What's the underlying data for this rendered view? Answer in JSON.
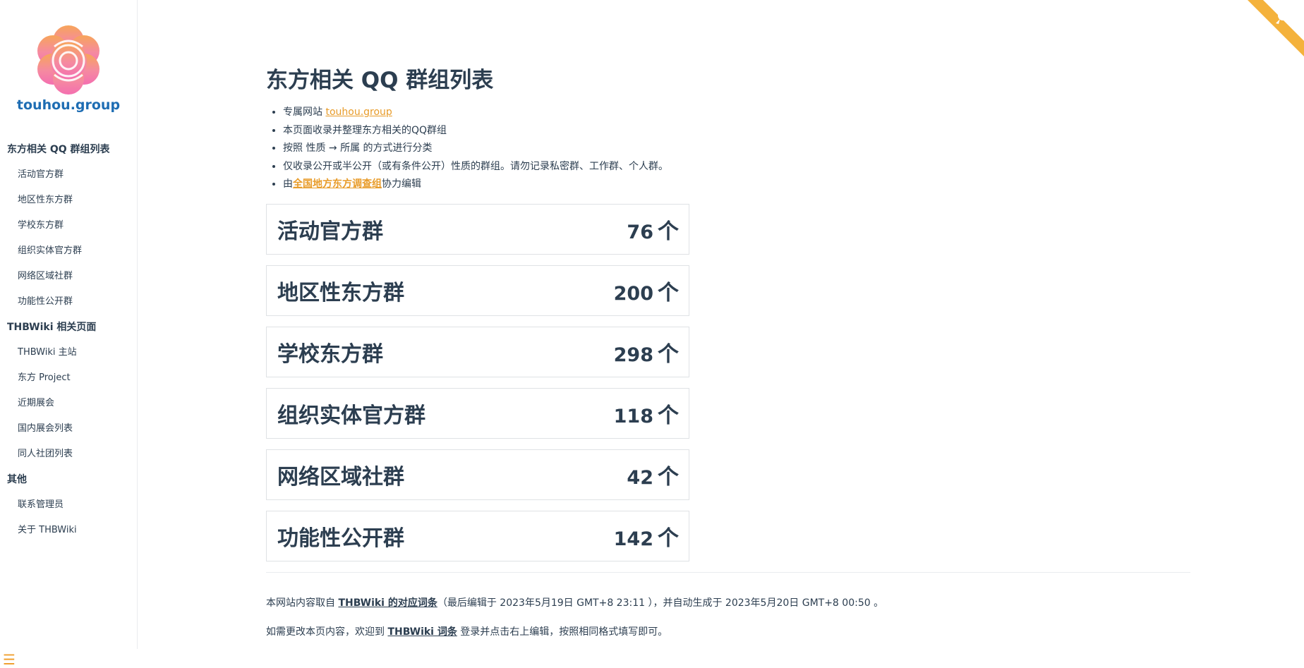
{
  "logo": {
    "text": "touhou.group"
  },
  "sidebar": {
    "groups": [
      {
        "title": "东方相关 QQ 群组列表",
        "items": [
          "活动官方群",
          "地区性东方群",
          "学校东方群",
          "组织实体官方群",
          "网络区域社群",
          "功能性公开群"
        ]
      },
      {
        "title": "THBWiki 相关页面",
        "items": [
          "THBWiki 主站",
          "东方 Project",
          "近期展会",
          "国内展会列表",
          "同人社团列表"
        ]
      },
      {
        "title": "其他",
        "items": [
          "联系管理员",
          "关于 THBWiki"
        ]
      }
    ],
    "menu_icon": "hamburger-icon"
  },
  "page": {
    "title": "东方相关 QQ 群组列表",
    "intro": {
      "line1_prefix": "专属网站 ",
      "line1_link": "touhou.group",
      "line2": "本页面收录并整理东方相关的QQ群组",
      "line3": "按照 性质 → 所属 的方式进行分类",
      "line4": "仅收录公开或半公开（或有条件公开）性质的群组。请勿记录私密群、工作群、个人群。",
      "line5_prefix": "由",
      "line5_link": "全国地方东方调查组",
      "line5_suffix": "协力编辑"
    }
  },
  "cards": [
    {
      "name": "活动官方群",
      "count": "76",
      "unit": "个"
    },
    {
      "name": "地区性东方群",
      "count": "200",
      "unit": "个"
    },
    {
      "name": "学校东方群",
      "count": "298",
      "unit": "个"
    },
    {
      "name": "组织实体官方群",
      "count": "118",
      "unit": "个"
    },
    {
      "name": "网络区域社群",
      "count": "42",
      "unit": "个"
    },
    {
      "name": "功能性公开群",
      "count": "142",
      "unit": "个"
    }
  ],
  "footer": {
    "line1_prefix": "本网站内容取自 ",
    "line1_link": "THBWiki 的对应词条",
    "line1_suffix": "（最后编辑于 2023年5月19日 GMT+8 23:11 ），并自动生成于 2023年5月20日 GMT+8 00:50 。",
    "line2_prefix": "如需更改本页内容，欢迎到 ",
    "line2_link": "THBWiki 词条",
    "line2_suffix": " 登录并点击右上编辑，按照相同格式填写即可。"
  },
  "colors": {
    "accent": "#e89c2a",
    "text": "#2c3e50",
    "logo_blue": "#1e6db3",
    "border": "#dfe2e5"
  },
  "icons": {
    "corner": "github-octocat-icon",
    "logo": "flower-logo-icon"
  }
}
